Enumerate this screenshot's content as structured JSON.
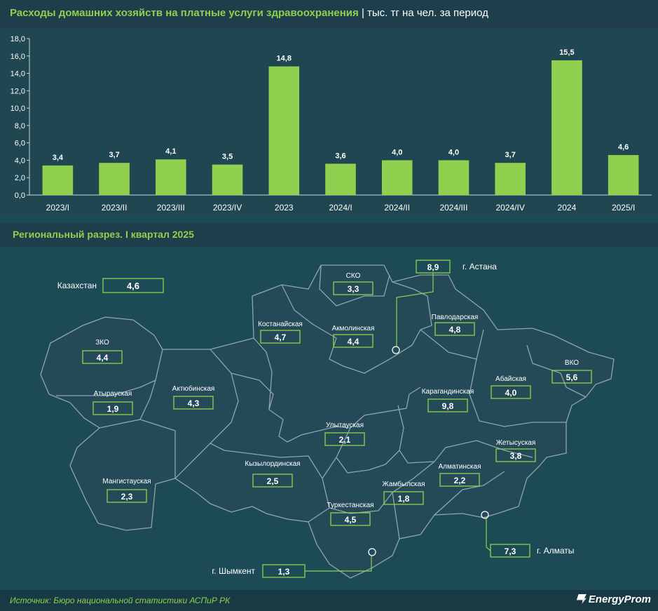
{
  "header": {
    "title": "Расходы домашних хозяйств на платные услуги здравоохранения",
    "separator": "|",
    "unit": "тыс. тг на чел. за период"
  },
  "chart_data": {
    "type": "bar",
    "categories": [
      "2023/I",
      "2023/II",
      "2023/III",
      "2023/IV",
      "2023",
      "2024/I",
      "2024/II",
      "2024/III",
      "2024/IV",
      "2024",
      "2025/I"
    ],
    "values": [
      3.4,
      3.7,
      4.1,
      3.5,
      14.8,
      3.6,
      4.0,
      4.0,
      3.7,
      15.5,
      4.6
    ],
    "value_labels": [
      "3,4",
      "3,7",
      "4,1",
      "3,5",
      "14,8",
      "3,6",
      "4,0",
      "4,0",
      "3,7",
      "15,5",
      "4,6"
    ],
    "ylim": [
      0,
      18
    ],
    "yticks": [
      "0,0",
      "2,0",
      "4,0",
      "6,0",
      "8,0",
      "10,0",
      "12,0",
      "14,0",
      "16,0",
      "18,0"
    ],
    "bar_color": "#8fd14f",
    "grid": false
  },
  "map": {
    "subtitle": "Региональный разрез. I квартал 2025",
    "national": {
      "name": "Казахстан",
      "value": "4,6"
    },
    "regions": [
      {
        "name": "СКО",
        "value": "3,3"
      },
      {
        "name": "Костанайская",
        "value": "4,7"
      },
      {
        "name": "Акмолинская",
        "value": "4,4"
      },
      {
        "name": "Павлодарская",
        "value": "4,8"
      },
      {
        "name": "ЗКО",
        "value": "4,4"
      },
      {
        "name": "Атырауская",
        "value": "1,9"
      },
      {
        "name": "Актюбинская",
        "value": "4,3"
      },
      {
        "name": "Карагандинская",
        "value": "9,8"
      },
      {
        "name": "Абайская",
        "value": "4,0"
      },
      {
        "name": "ВКО",
        "value": "5,6"
      },
      {
        "name": "Улытауская",
        "value": "2,1"
      },
      {
        "name": "Жетысуская",
        "value": "3,8"
      },
      {
        "name": "Кызылординская",
        "value": "2,5"
      },
      {
        "name": "Алматинская",
        "value": "2,2"
      },
      {
        "name": "Мангистауская",
        "value": "2,3"
      },
      {
        "name": "Жамбылская",
        "value": "1,8"
      },
      {
        "name": "Туркестанская",
        "value": "4,5"
      }
    ],
    "cities": [
      {
        "name": "г. Астана",
        "value": "8,9"
      },
      {
        "name": "г. Алматы",
        "value": "7,3"
      },
      {
        "name": "г. Шымкент",
        "value": "1,3"
      }
    ],
    "fill_color": "#244a58",
    "border_color": "#8fa5ad",
    "box_color": "#8fd14f"
  },
  "footer": {
    "source": "Источник: Бюро национальной статистики АСПиР РК",
    "logo": "EnergyProm"
  }
}
